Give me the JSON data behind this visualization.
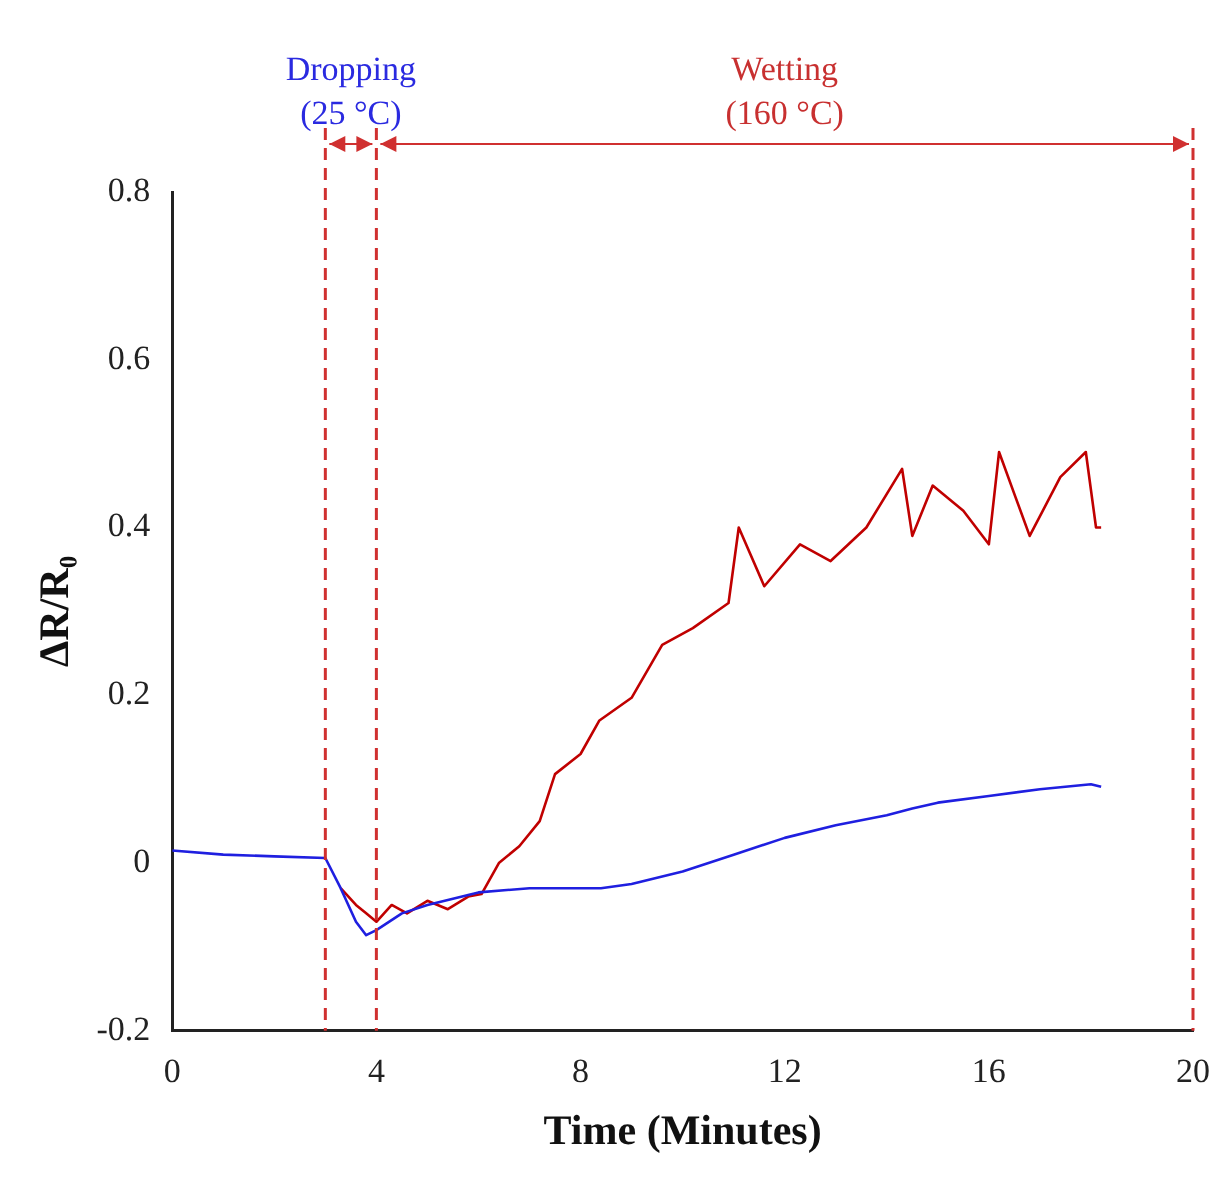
{
  "chart_data": {
    "type": "line",
    "xlabel": "Time (Minutes)",
    "ylabel": "ΔR/R₀",
    "xlim": [
      0,
      20
    ],
    "xticks": [
      0,
      4,
      8,
      12,
      16,
      20
    ],
    "ylim": [
      -0.2,
      0.8
    ],
    "yticks": [
      -0.2,
      0,
      0.2,
      0.4,
      0.6,
      0.8
    ],
    "grid": false,
    "legend": false,
    "marker": "none",
    "line_style": "solid",
    "series": [
      {
        "color": "#1f1fe0",
        "x": [
          0,
          1,
          2,
          3,
          3.3,
          3.6,
          3.8,
          4,
          4.5,
          5,
          6,
          7,
          8,
          8.4,
          9,
          10,
          11,
          12,
          13,
          14,
          14.5,
          15,
          16,
          17,
          18,
          18.2
        ],
        "values": [
          0.015,
          0.01,
          0.008,
          0.006,
          -0.03,
          -0.07,
          -0.086,
          -0.08,
          -0.06,
          -0.05,
          -0.035,
          -0.03,
          -0.03,
          -0.03,
          -0.025,
          -0.01,
          0.01,
          0.03,
          0.045,
          0.057,
          0.065,
          0.072,
          0.08,
          0.088,
          0.094,
          0.091
        ]
      },
      {
        "color": "#c00000",
        "x": [
          3.3,
          3.6,
          3.8,
          4,
          4.3,
          4.6,
          5,
          5.4,
          5.8,
          6.06,
          6.4,
          6.8,
          7.2,
          7.5,
          8,
          8.37,
          9,
          9.6,
          10.2,
          10.9,
          11.1,
          11.6,
          12.3,
          12.9,
          13.6,
          14.3,
          14.5,
          14.9,
          15.5,
          16,
          16.2,
          16.8,
          17.4,
          17.9,
          18.1,
          18.2
        ],
        "values": [
          -0.03,
          -0.05,
          -0.06,
          -0.07,
          -0.05,
          -0.06,
          -0.045,
          -0.055,
          -0.04,
          -0.037,
          0.0,
          0.02,
          0.05,
          0.106,
          0.13,
          0.17,
          0.197,
          0.26,
          0.28,
          0.31,
          0.4,
          0.33,
          0.38,
          0.36,
          0.4,
          0.47,
          0.39,
          0.45,
          0.42,
          0.38,
          0.49,
          0.39,
          0.46,
          0.49,
          0.4,
          0.4
        ]
      }
    ],
    "ref_lines": [
      {
        "axis": "x",
        "value": 3,
        "color": "#d03030",
        "line_style": "dashed"
      },
      {
        "axis": "x",
        "value": 4,
        "color": "#d03030",
        "line_style": "dashed"
      },
      {
        "axis": "x",
        "value": 20,
        "color": "#d03030",
        "line_style": "dashed"
      }
    ],
    "annotations": [
      "Dropping\n(25 °C)",
      "Wetting\n(160 °C)"
    ]
  }
}
